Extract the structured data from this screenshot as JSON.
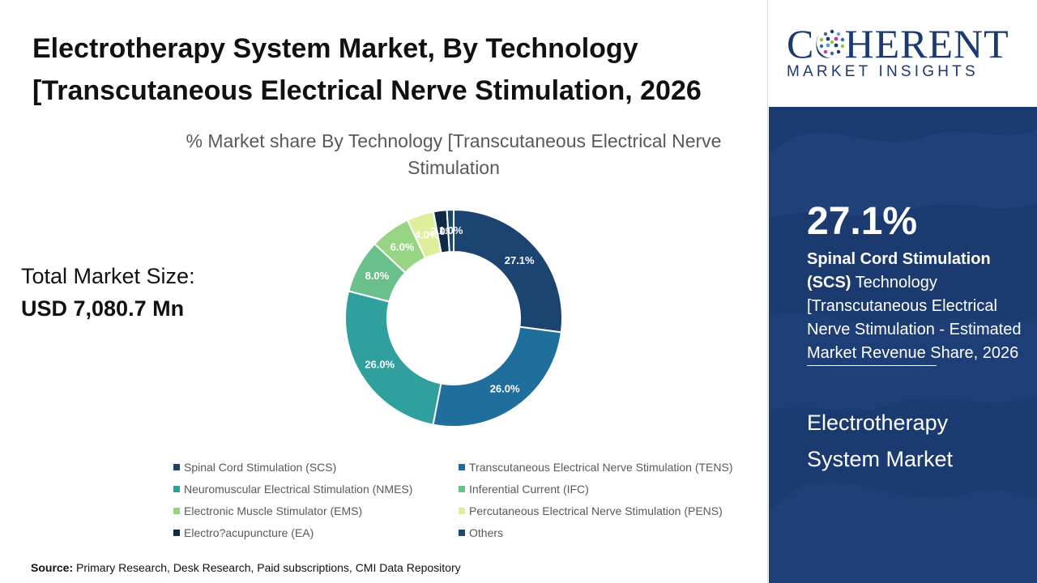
{
  "header": {
    "title": "Electrotherapy System Market, By Technology [Transcutaneous Electrical Nerve Stimulation, 2026"
  },
  "summary": {
    "total_label": "Total Market Size:",
    "total_value": "USD 7,080.7 Mn"
  },
  "source": {
    "label": "Source:",
    "text": "Primary Research, Desk Research, Paid subscriptions, CMI Data Repository"
  },
  "sidebar": {
    "logo_main": "COHERENT",
    "logo_sub": "MARKET INSIGHTS",
    "highlight_value": "27.1%",
    "highlight_bold": "Spinal Cord Stimulation (SCS)",
    "highlight_text": " Technology [Transcutaneous Electrical Nerve Stimulation - Estimated Market Revenue Share, 2026",
    "market_name": "Electrotherapy System Market",
    "bg_color": "#1b3a70"
  },
  "chart_data": {
    "type": "pie",
    "subtype": "donut",
    "title": "% Market share By Technology [Transcutaneous Electrical Nerve Stimulation",
    "categories": [
      "Spinal Cord Stimulation (SCS)",
      "Transcutaneous Electrical Nerve Stimulation (TENS)",
      "Neuromuscular Electrical Stimulation (NMES)",
      "Inferential Current (IFC)",
      "Electronic Muscle Stimulator (EMS)",
      "Percutaneous Electrical Nerve Stimulation (PENS)",
      "Electro?acupuncture (EA)",
      "Others"
    ],
    "values": [
      27.1,
      26.0,
      26.0,
      8.0,
      6.0,
      4.0,
      2.0,
      1.0
    ],
    "labels": [
      "27.1%",
      "26.0%",
      "26.0%",
      "8.0%",
      "6.0%",
      "4.0%",
      "2.0%",
      "1.0%"
    ],
    "colors": [
      "#1b4470",
      "#1f6e9c",
      "#30a09e",
      "#6ac08a",
      "#97d585",
      "#ddef9a",
      "#0e2a45",
      "#1a4a6b"
    ],
    "label_colors": [
      "#ffffff",
      "#ffffff",
      "#ffffff",
      "#ffffff",
      "#ffffff",
      "#ffffff",
      "#ffffff",
      "#ffffff"
    ],
    "legend_position": "bottom"
  }
}
